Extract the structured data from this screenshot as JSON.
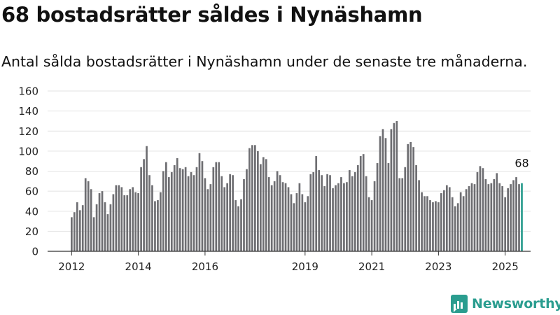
{
  "title": "68 bostadsrätter såldes i Nynäshamn",
  "subtitle": "Antal sålda bostadsrätter i Nynäshamn under de senaste tre månaderna.",
  "brand": {
    "name": "Newsworthy",
    "color": "#2a9d8f"
  },
  "colors": {
    "bar": "#6e6e72",
    "highlight": "#2a9d8f",
    "grid": "#e2e2e2",
    "axis": "#333333"
  },
  "chart_data": {
    "type": "bar",
    "title": "68 bostadsrätter såldes i Nynäshamn",
    "xlabel": "",
    "ylabel": "",
    "ylim": [
      0,
      160
    ],
    "yticks": [
      0,
      20,
      40,
      60,
      80,
      100,
      120,
      140,
      160
    ],
    "grid": true,
    "legend": "none",
    "start": "2012-01",
    "xticks": [
      {
        "label": "2012",
        "date": "2012-01"
      },
      {
        "label": "2014",
        "date": "2014-01"
      },
      {
        "label": "2016",
        "date": "2016-01"
      },
      {
        "label": "2019",
        "date": "2019-01"
      },
      {
        "label": "2021",
        "date": "2021-01"
      },
      {
        "label": "2023",
        "date": "2023-01"
      },
      {
        "label": "2025",
        "date": "2025-01"
      }
    ],
    "values": [
      34,
      39,
      49,
      41,
      46,
      73,
      70,
      62,
      34,
      47,
      58,
      60,
      49,
      37,
      47,
      57,
      66,
      66,
      64,
      56,
      56,
      62,
      64,
      59,
      58,
      84,
      92,
      105,
      76,
      66,
      50,
      51,
      59,
      80,
      89,
      74,
      79,
      86,
      93,
      83,
      82,
      84,
      75,
      79,
      76,
      84,
      98,
      90,
      73,
      62,
      67,
      84,
      89,
      89,
      75,
      64,
      68,
      77,
      76,
      51,
      45,
      52,
      72,
      82,
      103,
      106,
      106,
      100,
      87,
      94,
      92,
      74,
      66,
      70,
      80,
      76,
      69,
      68,
      64,
      57,
      48,
      58,
      68,
      57,
      49,
      55,
      77,
      79,
      95,
      81,
      76,
      65,
      77,
      76,
      63,
      66,
      68,
      74,
      68,
      69,
      81,
      75,
      79,
      86,
      95,
      97,
      75,
      54,
      51,
      70,
      88,
      115,
      122,
      113,
      88,
      122,
      128,
      130,
      73,
      73,
      84,
      107,
      109,
      104,
      86,
      71,
      59,
      55,
      55,
      51,
      49,
      50,
      49,
      58,
      61,
      66,
      64,
      54,
      45,
      48,
      59,
      55,
      62,
      65,
      68,
      67,
      79,
      85,
      83,
      72,
      67,
      68,
      72,
      78,
      68,
      65,
      54,
      63,
      67,
      71,
      74,
      67,
      68
    ],
    "highlight": {
      "value": 68,
      "label": "68"
    }
  }
}
